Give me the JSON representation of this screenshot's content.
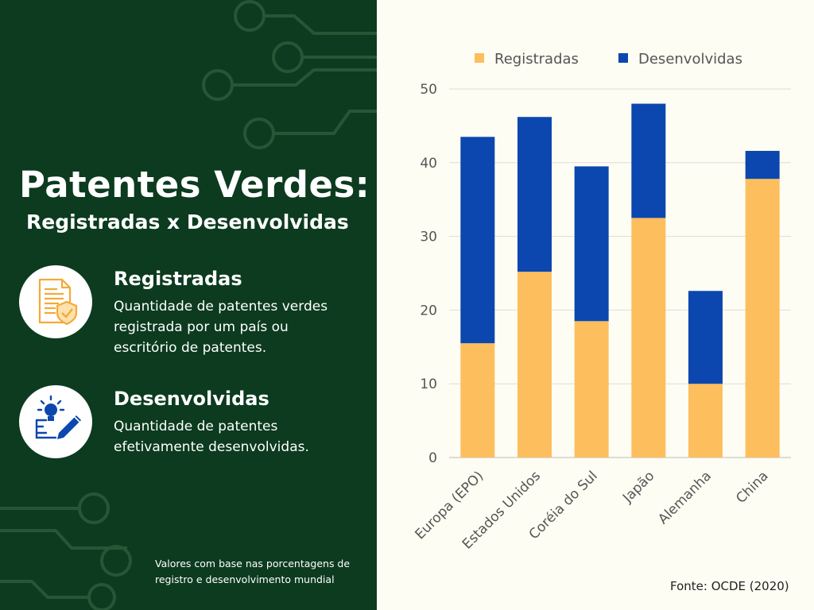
{
  "left_panel": {
    "title": "Patentes Verdes:",
    "subtitle": "Registradas x Desenvolvidas",
    "items": [
      {
        "icon": "patent-document-shield-icon",
        "title": "Registradas",
        "lines": [
          "Quantidade de patentes verdes",
          "registrada por um país ou",
          "escritório de patentes."
        ]
      },
      {
        "icon": "lightbulb-pencil-icon",
        "title": "Desenvolvidas",
        "lines": [
          "Quantidade de patentes",
          "efetivamente desenvolvidas."
        ]
      }
    ],
    "footnote_lines": [
      "Valores com base nas porcentagens de",
      "registro e desenvolvimento mundial"
    ]
  },
  "source": "Fonte: OCDE (2020)",
  "colors": {
    "panel_bg": "#0c3b1f",
    "page_bg": "#fdfdf3",
    "registradas": "#fdbe5e",
    "desenvolvidas": "#0b47ae"
  },
  "chart_data": {
    "type": "bar",
    "stacked": true,
    "categories": [
      "Europa (EPO)",
      "Estados Unidos",
      "Coréia do Sul",
      "Japão",
      "Alemanha",
      "China"
    ],
    "series": [
      {
        "name": "Registradas",
        "color": "#fdbe5e",
        "values": [
          15.5,
          25.2,
          18.5,
          32.5,
          10.0,
          37.8
        ]
      },
      {
        "name": "Desenvolvidas",
        "color": "#0b47ae",
        "values": [
          28.0,
          21.0,
          21.0,
          15.5,
          12.6,
          3.8
        ]
      }
    ],
    "yticks": [
      0,
      10,
      20,
      30,
      40,
      50
    ],
    "ylim": [
      0,
      50
    ],
    "legend": "top",
    "grid": true
  }
}
